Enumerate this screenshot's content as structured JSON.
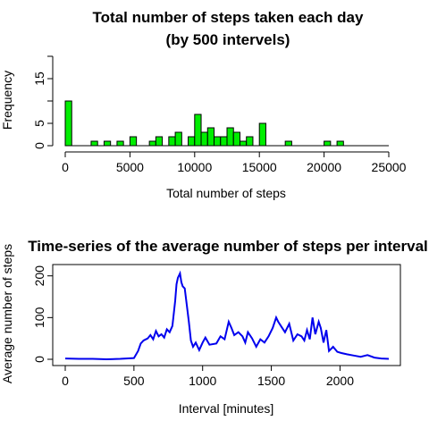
{
  "chart_data": [
    {
      "type": "bar",
      "title_lines": [
        "Total number of steps taken each day",
        "(by 500 intervels)"
      ],
      "xlabel": "Total number of steps",
      "ylabel": "Frequency",
      "xlim": [
        0,
        25000
      ],
      "ylim": [
        0,
        20
      ],
      "x_ticks": [
        0,
        5000,
        10000,
        15000,
        20000,
        25000
      ],
      "y_ticks": [
        0,
        5,
        15
      ],
      "bin_width": 500,
      "bins": [
        {
          "x0": 0,
          "count": 10
        },
        {
          "x0": 2000,
          "count": 1
        },
        {
          "x0": 3000,
          "count": 1
        },
        {
          "x0": 4000,
          "count": 1
        },
        {
          "x0": 5000,
          "count": 2
        },
        {
          "x0": 6500,
          "count": 1
        },
        {
          "x0": 7000,
          "count": 2
        },
        {
          "x0": 8000,
          "count": 2
        },
        {
          "x0": 8500,
          "count": 3
        },
        {
          "x0": 9500,
          "count": 2
        },
        {
          "x0": 10000,
          "count": 7
        },
        {
          "x0": 10500,
          "count": 3
        },
        {
          "x0": 11000,
          "count": 4
        },
        {
          "x0": 11500,
          "count": 2
        },
        {
          "x0": 12000,
          "count": 2
        },
        {
          "x0": 12500,
          "count": 4
        },
        {
          "x0": 13000,
          "count": 3
        },
        {
          "x0": 13500,
          "count": 1
        },
        {
          "x0": 14000,
          "count": 2
        },
        {
          "x0": 15000,
          "count": 5
        },
        {
          "x0": 17000,
          "count": 1
        },
        {
          "x0": 20000,
          "count": 1
        },
        {
          "x0": 21000,
          "count": 1
        }
      ],
      "bar_fill": "#00ee00",
      "grid": false
    },
    {
      "type": "line",
      "title": "Time-series of the average number of steps per interval",
      "xlabel": "Interval [minutes]",
      "ylabel": "Average number of steps",
      "xlim": [
        0,
        2355
      ],
      "ylim": [
        0,
        210
      ],
      "x_ticks": [
        0,
        500,
        1000,
        1500,
        2000
      ],
      "y_ticks": [
        0,
        100,
        200
      ],
      "line_color": "#0000ee",
      "grid": false,
      "x": [
        0,
        100,
        200,
        300,
        400,
        500,
        530,
        550,
        570,
        600,
        620,
        640,
        660,
        680,
        700,
        720,
        740,
        760,
        780,
        800,
        810,
        820,
        835,
        845,
        855,
        870,
        885,
        900,
        915,
        930,
        950,
        975,
        1000,
        1020,
        1050,
        1100,
        1130,
        1160,
        1190,
        1210,
        1230,
        1260,
        1290,
        1310,
        1330,
        1360,
        1390,
        1420,
        1450,
        1480,
        1510,
        1535,
        1550,
        1570,
        1600,
        1630,
        1660,
        1690,
        1720,
        1740,
        1760,
        1780,
        1800,
        1820,
        1845,
        1860,
        1880,
        1900,
        1920,
        1950,
        1980,
        2010,
        2050,
        2100,
        2150,
        2200,
        2250,
        2300,
        2355
      ],
      "y": [
        2,
        1,
        1,
        0,
        1,
        3,
        20,
        38,
        45,
        50,
        58,
        48,
        68,
        55,
        60,
        52,
        72,
        65,
        80,
        140,
        180,
        195,
        206,
        185,
        175,
        170,
        130,
        90,
        45,
        30,
        40,
        22,
        40,
        52,
        35,
        38,
        55,
        48,
        90,
        75,
        58,
        65,
        55,
        40,
        65,
        50,
        30,
        48,
        40,
        55,
        75,
        100,
        90,
        80,
        65,
        85,
        45,
        60,
        55,
        45,
        70,
        48,
        100,
        60,
        90,
        75,
        40,
        70,
        20,
        30,
        18,
        15,
        12,
        9,
        6,
        10,
        4,
        2,
        1
      ]
    }
  ]
}
